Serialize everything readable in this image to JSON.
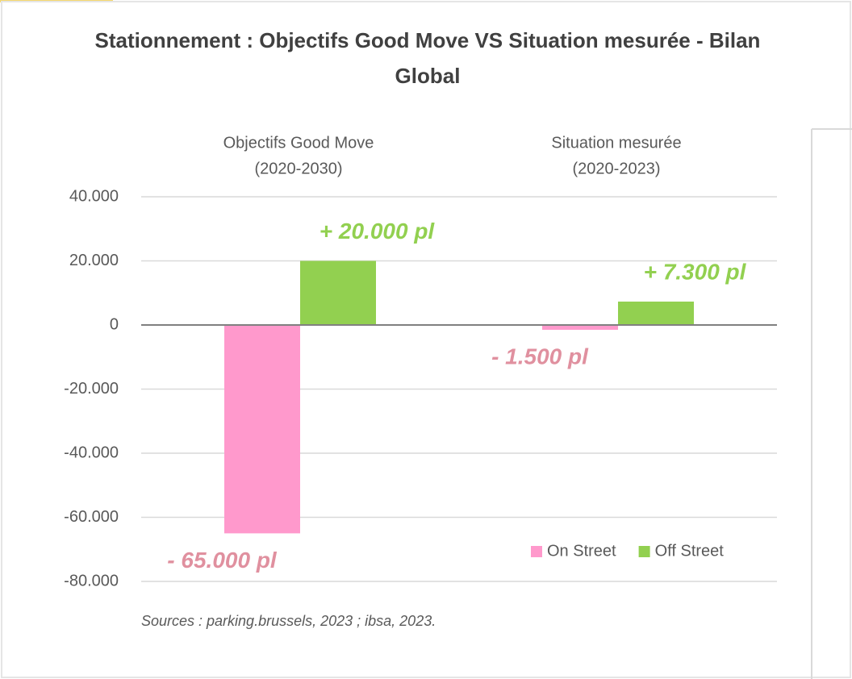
{
  "chart_data": {
    "type": "bar",
    "title": "Stationnement : Objectifs Good Move VS Situation mesurée - Bilan Global",
    "categories": [
      [
        "Objectifs Good Move",
        "(2020-2030)"
      ],
      [
        "Situation mesurée",
        "(2020-2023)"
      ]
    ],
    "series": [
      {
        "name": "On Street",
        "color": "#ff99cc",
        "label_color": "#e0909f",
        "values": [
          -65000,
          -1500
        ],
        "value_labels": [
          "- 65.000 pl",
          "- 1.500 pl"
        ]
      },
      {
        "name": "Off Street",
        "color": "#92d050",
        "label_color": "#92d050",
        "values": [
          20000,
          7300
        ],
        "value_labels": [
          "+ 20.000 pl",
          "+ 7.300 pl"
        ]
      }
    ],
    "ylim": [
      -80000,
      40000
    ],
    "yticks": [
      {
        "value": -80000,
        "label": "-80.000"
      },
      {
        "value": -60000,
        "label": "-60.000"
      },
      {
        "value": -40000,
        "label": "-40.000"
      },
      {
        "value": -20000,
        "label": "-20.000"
      },
      0,
      {
        "value": 20000,
        "label": "20.000"
      },
      {
        "value": 40000,
        "label": "40.000"
      }
    ],
    "grid": true,
    "legend": "lower right",
    "source": "Sources : parking.brussels, 2023 ; ibsa, 2023."
  }
}
